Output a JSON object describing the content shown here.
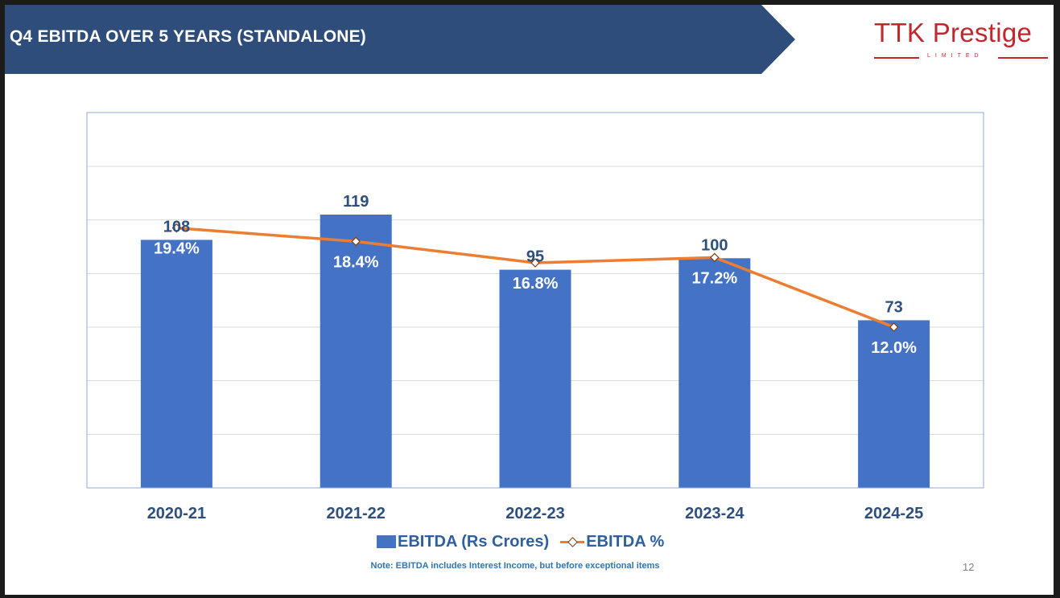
{
  "header": {
    "title": "Q4 EBITDA OVER 5 YEARS (STANDALONE)",
    "banner_color": "#2f4d7a"
  },
  "logo": {
    "name": "TTK Prestige",
    "subtitle": "LIMITED",
    "color": "#c1272d"
  },
  "chart_data": {
    "type": "bar",
    "title": "Q4 EBITDA OVER 5 YEARS (STANDALONE)",
    "categories": [
      "2020-21",
      "2021-22",
      "2022-23",
      "2023-24",
      "2024-25"
    ],
    "series": [
      {
        "name": "EBITDA (Rs Crores)",
        "type": "bar",
        "values": [
          108,
          119,
          95,
          100,
          73
        ],
        "labels": [
          "108",
          "119",
          "95",
          "100",
          "73"
        ],
        "color": "#4472c4"
      },
      {
        "name": "EBITDA %",
        "type": "line",
        "values": [
          19.4,
          18.4,
          16.8,
          17.2,
          12.0
        ],
        "labels": [
          "19.4%",
          "18.4%",
          "16.8%",
          "17.2%",
          "12.0%"
        ],
        "color": "#ed7d31"
      }
    ],
    "ylim": [
      0,
      140
    ],
    "y2lim": [
      0,
      24
    ],
    "grid": true,
    "legend": "bottom",
    "xlabel": "",
    "ylabel": ""
  },
  "legend": {
    "bar_label": "EBITDA (Rs Crores)",
    "line_label": "EBITDA %"
  },
  "footer": {
    "note": "Note: EBITDA includes Interest Income, but before exceptional items",
    "page_number": "12"
  }
}
